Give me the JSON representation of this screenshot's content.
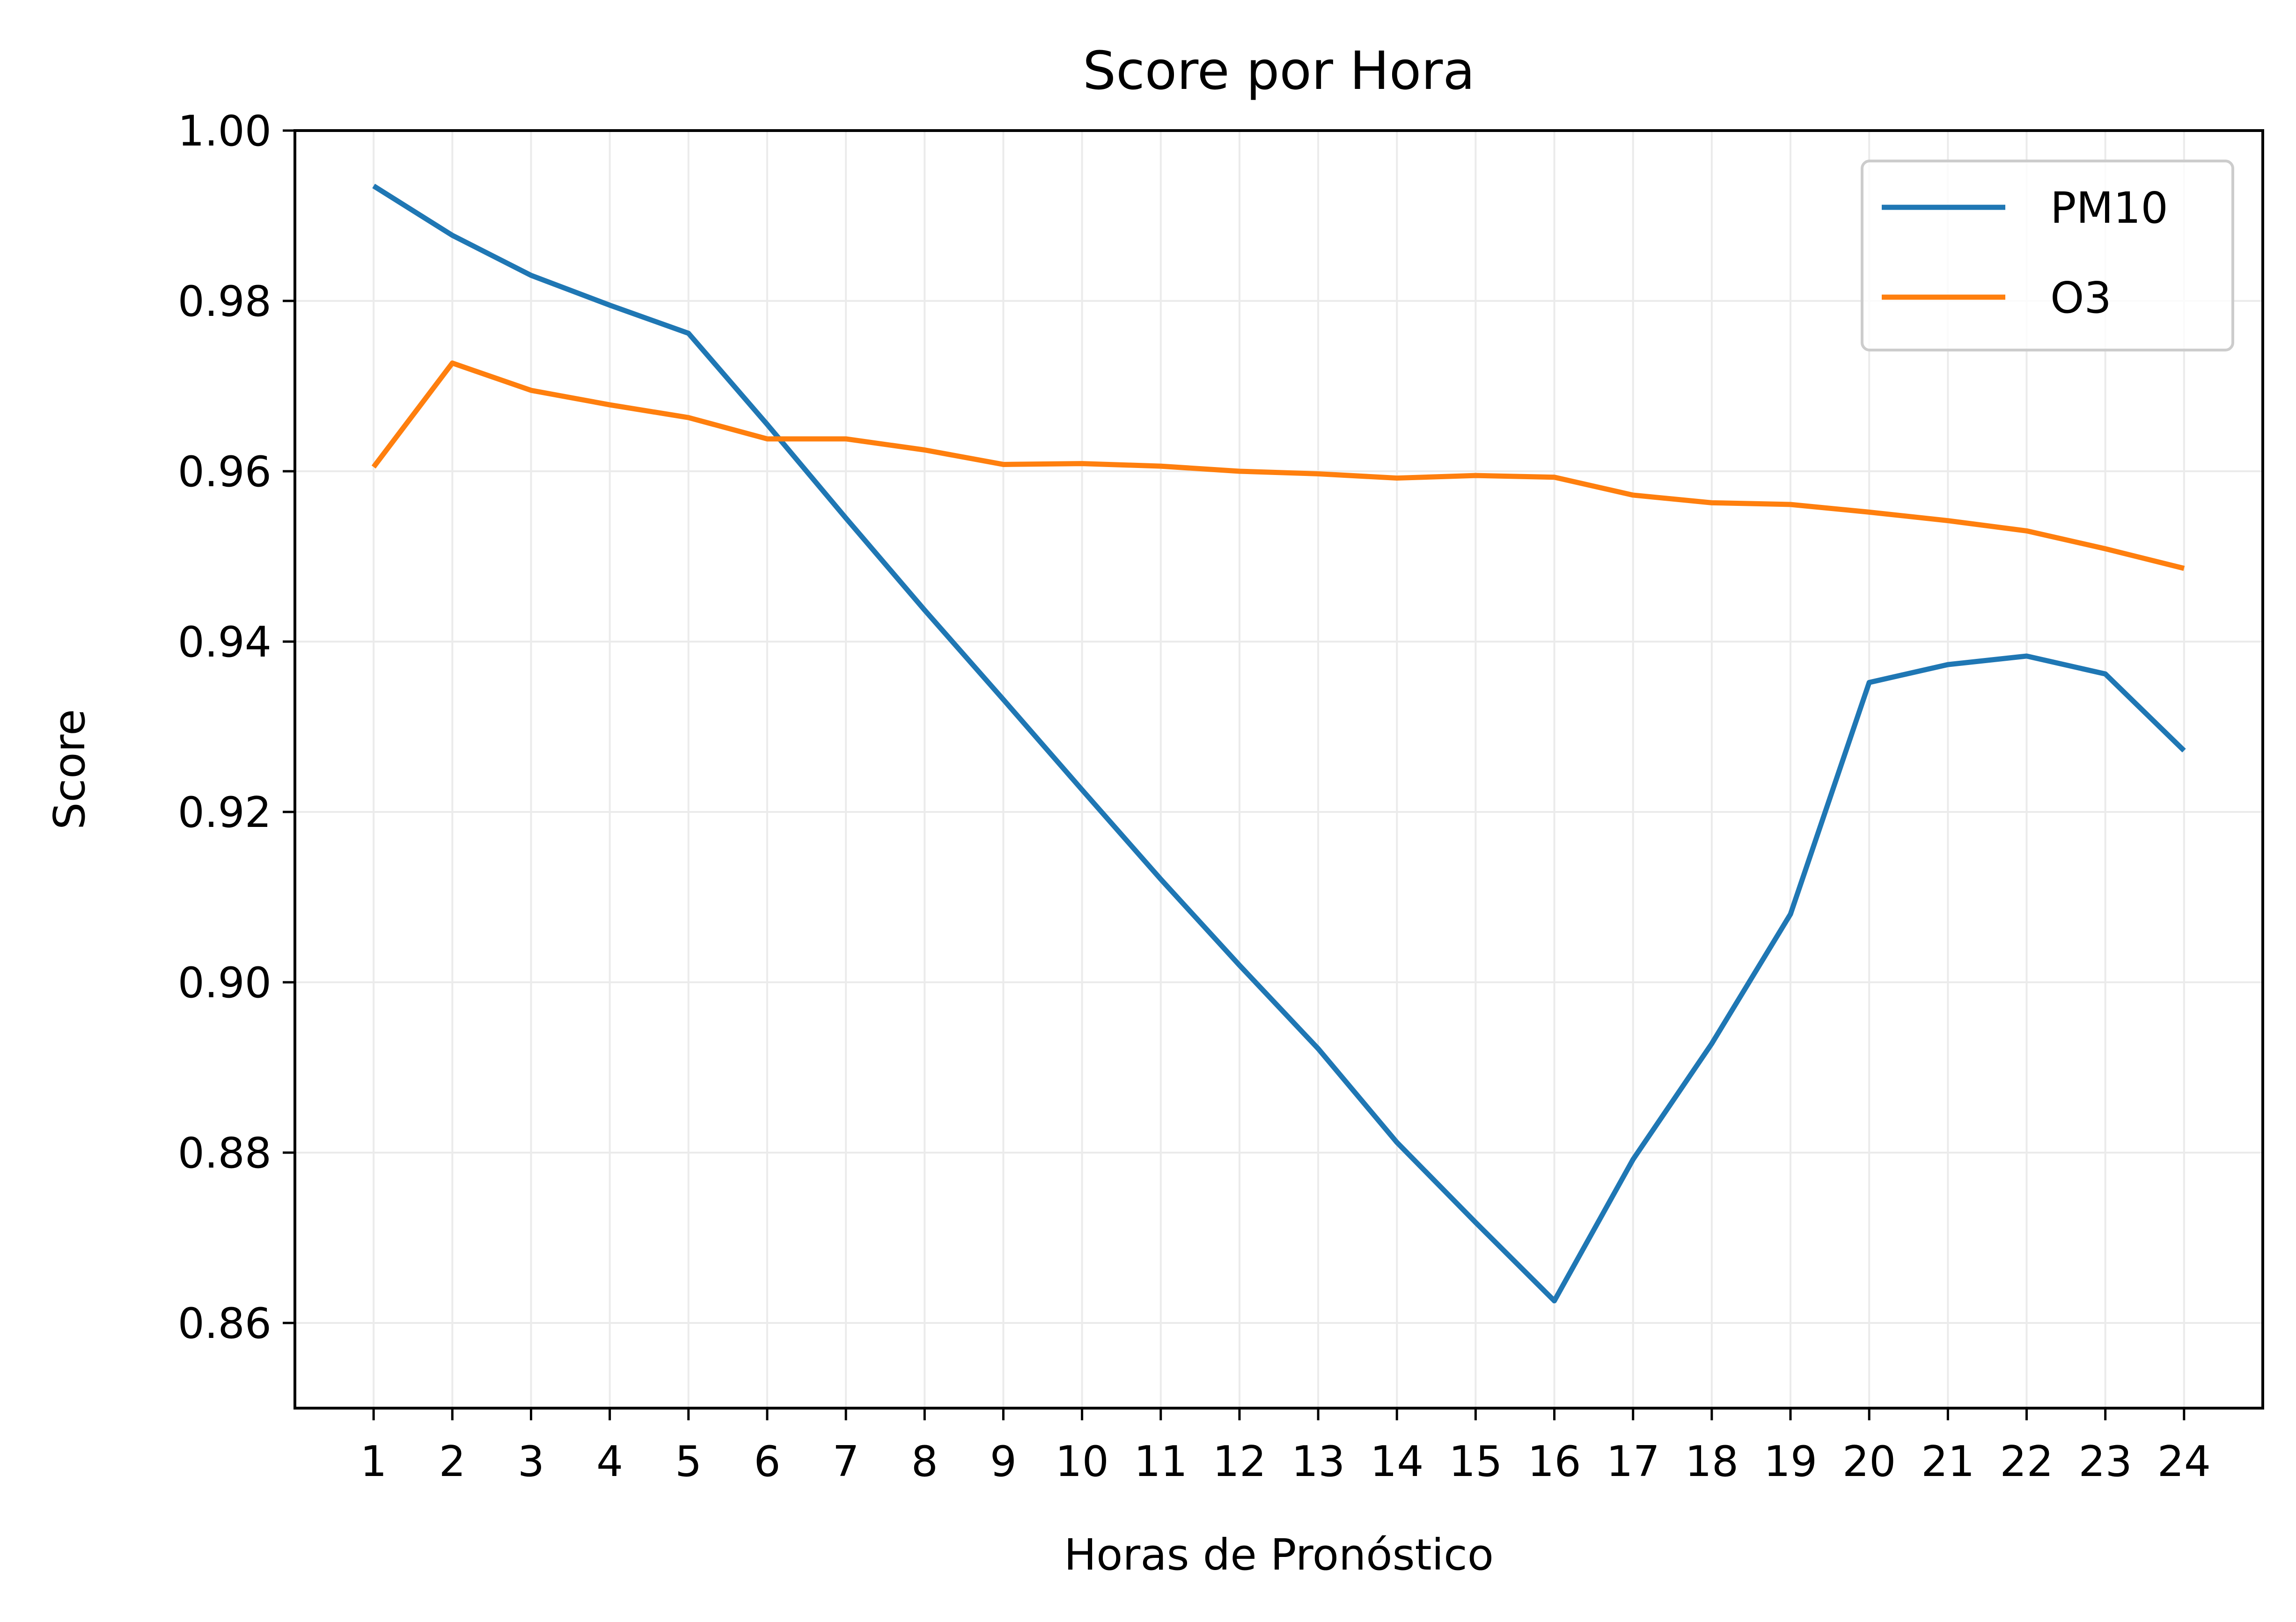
{
  "chart_data": {
    "type": "line",
    "title": "Score por Hora",
    "xlabel": "Horas de Pronóstico",
    "ylabel": "Score",
    "x": [
      1,
      2,
      3,
      4,
      5,
      6,
      7,
      8,
      9,
      10,
      11,
      12,
      13,
      14,
      15,
      16,
      17,
      18,
      19,
      20,
      21,
      22,
      23,
      24
    ],
    "x_tick_labels": [
      "1",
      "2",
      "3",
      "4",
      "5",
      "6",
      "7",
      "8",
      "9",
      "10",
      "11",
      "12",
      "13",
      "14",
      "15",
      "16",
      "17",
      "18",
      "19",
      "20",
      "21",
      "22",
      "23",
      "24"
    ],
    "y_tick_labels": [
      "0.86",
      "0.88",
      "0.90",
      "0.92",
      "0.94",
      "0.96",
      "0.98",
      "1.00"
    ],
    "y_ticks": [
      0.86,
      0.88,
      0.9,
      0.92,
      0.94,
      0.96,
      0.98,
      1.0
    ],
    "ylim": [
      0.85,
      1.0
    ],
    "xlim": [
      0,
      25
    ],
    "grid": true,
    "legend_position": "top-right",
    "series": [
      {
        "name": "PM10",
        "color": "#1f77b4",
        "values": [
          0.9935,
          0.9877,
          0.983,
          0.9795,
          0.9762,
          0.9655,
          0.9545,
          0.9437,
          0.9332,
          0.9226,
          0.9121,
          0.902,
          0.8922,
          0.8812,
          0.8718,
          0.8626,
          0.8792,
          0.8928,
          0.908,
          0.9352,
          0.9373,
          0.9383,
          0.9362,
          0.9272
        ]
      },
      {
        "name": "O3",
        "color": "#ff7f0e",
        "values": [
          0.9605,
          0.9727,
          0.9695,
          0.9678,
          0.9663,
          0.9638,
          0.9638,
          0.9625,
          0.9608,
          0.9609,
          0.9606,
          0.96,
          0.9597,
          0.9592,
          0.9595,
          0.9593,
          0.9572,
          0.9563,
          0.9561,
          0.9552,
          0.9542,
          0.953,
          0.9509,
          0.9486
        ]
      }
    ]
  }
}
